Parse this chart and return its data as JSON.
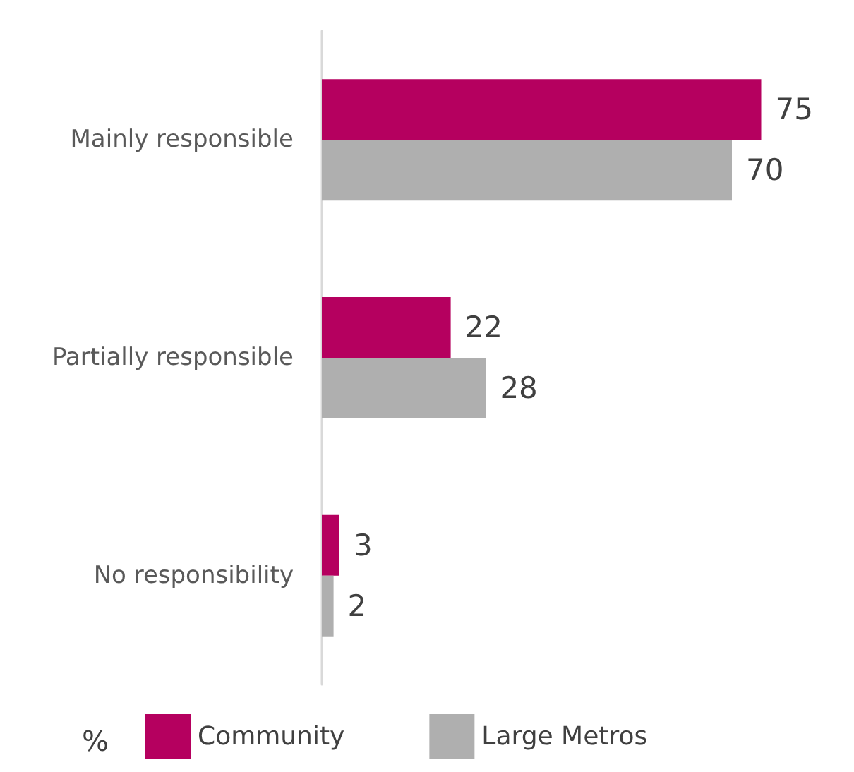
{
  "chart_data": {
    "type": "bar",
    "orientation": "horizontal",
    "categories": [
      "Mainly responsible",
      "Partially responsible",
      "No responsibility"
    ],
    "series": [
      {
        "name": "Community",
        "color": "#b5005f",
        "values": [
          75,
          22,
          3
        ]
      },
      {
        "name": "Large Metros",
        "color": "#afafaf",
        "values": [
          70,
          28,
          2
        ]
      }
    ],
    "data_labels": true,
    "legend": "bottom",
    "legend_title": "%"
  }
}
